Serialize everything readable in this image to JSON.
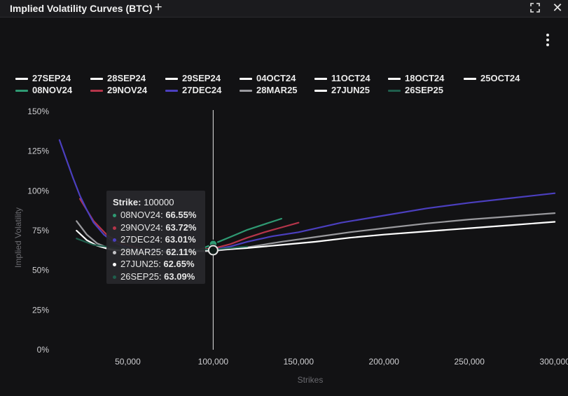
{
  "header": {
    "title": "Implied Volatility Curves (BTC)",
    "add_icon": "+",
    "close_icon": "✕"
  },
  "chart_data": {
    "type": "line",
    "title": "",
    "xlabel": "Strikes",
    "ylabel": "Implied Volatility",
    "xlim": [
      8000,
      302000
    ],
    "ylim": [
      0,
      150
    ],
    "xticks": [
      50000,
      100000,
      150000,
      200000,
      250000,
      300000
    ],
    "xtick_labels": [
      "50,000",
      "100,000",
      "150,000",
      "200,000",
      "250,000",
      "300,000"
    ],
    "yticks": [
      0,
      25,
      50,
      75,
      100,
      125,
      150
    ],
    "ytick_labels": [
      "0%",
      "25%",
      "50%",
      "75%",
      "100%",
      "125%",
      "150%"
    ],
    "legend_position": "top",
    "crosshair_x": 100000,
    "series": [
      {
        "name": "27SEP24",
        "color": "#ffffff",
        "points": []
      },
      {
        "name": "28SEP24",
        "color": "#ffffff",
        "points": []
      },
      {
        "name": "29SEP24",
        "color": "#ffffff",
        "points": []
      },
      {
        "name": "04OCT24",
        "color": "#ffffff",
        "points": []
      },
      {
        "name": "11OCT24",
        "color": "#ffffff",
        "points": []
      },
      {
        "name": "18OCT24",
        "color": "#ffffff",
        "points": []
      },
      {
        "name": "25OCT24",
        "color": "#ffffff",
        "points": []
      },
      {
        "name": "08NOV24",
        "color": "#2f9a73",
        "points": [
          [
            92000,
            63
          ],
          [
            100000,
            66.55
          ],
          [
            110000,
            71
          ],
          [
            120000,
            75.5
          ],
          [
            130000,
            79
          ],
          [
            140000,
            82.5
          ]
        ]
      },
      {
        "name": "29NOV24",
        "color": "#b5354a",
        "points": [
          [
            22000,
            95
          ],
          [
            30000,
            81
          ],
          [
            38000,
            72
          ],
          [
            46000,
            67
          ],
          [
            54000,
            64.5
          ],
          [
            62000,
            63
          ],
          [
            70000,
            62.5
          ],
          [
            80000,
            62.5
          ],
          [
            90000,
            63
          ],
          [
            100000,
            63.72
          ],
          [
            110000,
            66.5
          ],
          [
            120000,
            70.5
          ],
          [
            130000,
            74
          ],
          [
            140000,
            77
          ],
          [
            150000,
            80
          ]
        ]
      },
      {
        "name": "27DEC24",
        "color": "#4b3fbf",
        "points": [
          [
            10000,
            132
          ],
          [
            14000,
            120
          ],
          [
            18000,
            108
          ],
          [
            22000,
            97
          ],
          [
            26000,
            88
          ],
          [
            30000,
            80
          ],
          [
            36000,
            72.5
          ],
          [
            42000,
            67.5
          ],
          [
            50000,
            64
          ],
          [
            60000,
            62.5
          ],
          [
            70000,
            62
          ],
          [
            80000,
            62
          ],
          [
            90000,
            62.3
          ],
          [
            100000,
            63.01
          ],
          [
            110000,
            65
          ],
          [
            120000,
            68
          ],
          [
            135000,
            71.5
          ],
          [
            150000,
            74
          ],
          [
            175000,
            80
          ],
          [
            200000,
            84.5
          ],
          [
            225000,
            89
          ],
          [
            250000,
            92.5
          ],
          [
            275000,
            95.5
          ],
          [
            300000,
            98.5
          ]
        ]
      },
      {
        "name": "28MAR25",
        "color": "#9a9a9e",
        "points": [
          [
            20000,
            81
          ],
          [
            26000,
            72.5
          ],
          [
            32000,
            67
          ],
          [
            40000,
            63.5
          ],
          [
            50000,
            62
          ],
          [
            60000,
            61.5
          ],
          [
            70000,
            61.3
          ],
          [
            80000,
            61.4
          ],
          [
            90000,
            61.8
          ],
          [
            100000,
            62.11
          ],
          [
            120000,
            64.5
          ],
          [
            140000,
            68
          ],
          [
            160000,
            71
          ],
          [
            180000,
            74
          ],
          [
            200000,
            76.5
          ],
          [
            225000,
            79.5
          ],
          [
            250000,
            82
          ],
          [
            275000,
            84
          ],
          [
            300000,
            86
          ]
        ]
      },
      {
        "name": "27JUN25",
        "color": "#ffffff",
        "points": [
          [
            20000,
            75
          ],
          [
            26000,
            69
          ],
          [
            32000,
            65.5
          ],
          [
            40000,
            63
          ],
          [
            50000,
            62
          ],
          [
            60000,
            61.7
          ],
          [
            70000,
            61.6
          ],
          [
            80000,
            61.8
          ],
          [
            90000,
            62.2
          ],
          [
            100000,
            62.65
          ],
          [
            120000,
            64
          ],
          [
            140000,
            66
          ],
          [
            160000,
            68
          ],
          [
            180000,
            70.5
          ],
          [
            200000,
            72.5
          ],
          [
            225000,
            74.5
          ],
          [
            250000,
            76.5
          ],
          [
            275000,
            78.5
          ],
          [
            300000,
            80.5
          ]
        ]
      },
      {
        "name": "26SEP25",
        "color": "#1f5e4c",
        "points": [
          [
            20000,
            70
          ],
          [
            30000,
            66
          ],
          [
            40000,
            64.5
          ],
          [
            50000,
            63.6
          ],
          [
            60000,
            63.2
          ],
          [
            70000,
            63
          ],
          [
            80000,
            63
          ],
          [
            90000,
            63
          ],
          [
            100000,
            63.09
          ],
          [
            110000,
            64
          ],
          [
            120000,
            65
          ]
        ]
      }
    ]
  },
  "tooltip": {
    "strike_label": "Strike:",
    "strike_value": "100000",
    "rows": [
      {
        "name": "08NOV24:",
        "value": "66.55%",
        "color": "#2f9a73"
      },
      {
        "name": "29NOV24:",
        "value": "63.72%",
        "color": "#b5354a"
      },
      {
        "name": "27DEC24:",
        "value": "63.01%",
        "color": "#4b3fbf"
      },
      {
        "name": "28MAR25:",
        "value": "62.11%",
        "color": "#c4c4c8"
      },
      {
        "name": "27JUN25:",
        "value": "62.65%",
        "color": "#ffffff"
      },
      {
        "name": "26SEP25:",
        "value": "63.09%",
        "color": "#1f5e4c"
      }
    ]
  }
}
